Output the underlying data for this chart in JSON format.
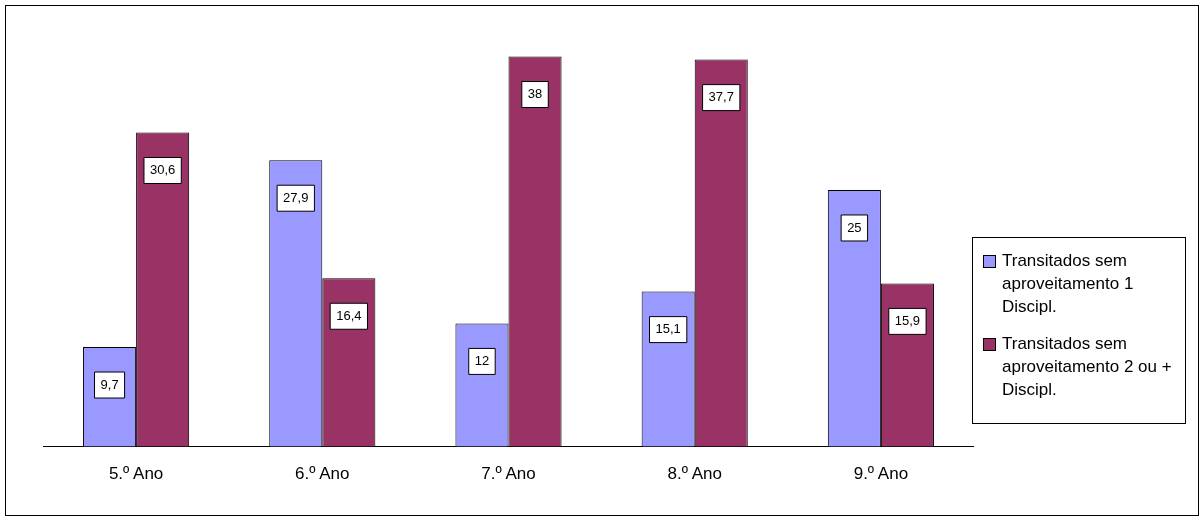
{
  "chart_data": {
    "type": "bar",
    "categories": [
      "5.º Ano",
      "6.º Ano",
      "7.º Ano",
      "8.º Ano",
      "9.º Ano"
    ],
    "series": [
      {
        "name": "Transitados sem aproveitamento 1 Discipl.",
        "color": "#9999ff",
        "values": [
          9.7,
          27.9,
          12,
          15.1,
          25
        ],
        "value_labels": [
          "9,7",
          "27,9",
          "12",
          "15,1",
          "25"
        ]
      },
      {
        "name": "Transitados sem aproveitamento 2 ou + Discipl.",
        "color": "#993366",
        "values": [
          30.6,
          16.4,
          38,
          37.7,
          15.9
        ],
        "value_labels": [
          "30,6",
          "16,4",
          "38",
          "37,7",
          "15,9"
        ]
      }
    ],
    "legend": "right",
    "grid": false
  }
}
